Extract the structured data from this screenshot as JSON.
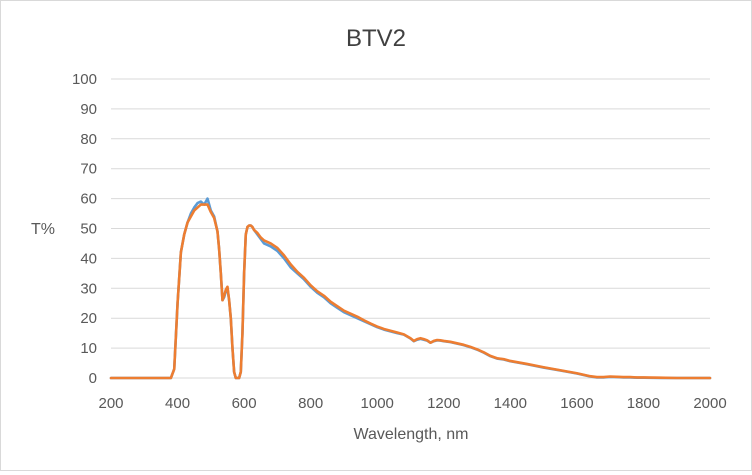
{
  "chart_data": {
    "type": "line",
    "title": "BTV2",
    "xlabel": "Wavelength, nm",
    "ylabel": "T%",
    "xlim": [
      200,
      2000
    ],
    "ylim": [
      0,
      100
    ],
    "x_ticks": [
      200,
      400,
      600,
      800,
      1000,
      1200,
      1400,
      1600,
      1800,
      2000
    ],
    "y_ticks": [
      0,
      10,
      20,
      30,
      40,
      50,
      60,
      70,
      80,
      90,
      100
    ],
    "grid": true,
    "legend": "none",
    "colors": [
      "#5b9bd5",
      "#ed7d31"
    ],
    "series": [
      {
        "color": "#5b9bd5",
        "x": [
          200,
          380,
          390,
          400,
          410,
          420,
          430,
          440,
          450,
          460,
          470,
          480,
          490,
          500,
          510,
          520,
          525,
          530,
          535,
          540,
          545,
          550,
          555,
          560,
          565,
          570,
          575,
          580,
          585,
          590,
          595,
          600,
          605,
          610,
          615,
          620,
          625,
          630,
          640,
          650,
          660,
          680,
          700,
          720,
          740,
          760,
          780,
          800,
          820,
          840,
          860,
          880,
          900,
          920,
          940,
          960,
          980,
          1000,
          1020,
          1040,
          1060,
          1080,
          1100,
          1110,
          1120,
          1130,
          1140,
          1150,
          1160,
          1170,
          1180,
          1190,
          1200,
          1220,
          1240,
          1260,
          1280,
          1300,
          1320,
          1340,
          1360,
          1380,
          1400,
          1450,
          1500,
          1550,
          1600,
          1640,
          1660,
          1680,
          1700,
          1720,
          1740,
          1760,
          1780,
          1800,
          1850,
          1900,
          1950,
          2000
        ],
        "values": [
          0,
          0,
          3,
          25,
          42,
          48,
          52,
          55,
          57,
          58.5,
          59,
          58,
          60,
          56,
          54,
          49,
          43,
          35,
          26,
          27,
          29,
          30,
          26,
          20,
          10,
          2,
          0,
          0,
          0,
          2,
          15,
          35,
          48,
          50.5,
          51,
          51,
          50.5,
          49.5,
          48,
          46.5,
          45,
          44,
          42.5,
          40,
          37,
          35,
          33,
          30.5,
          28.5,
          27,
          25,
          23.5,
          22,
          21,
          20,
          19,
          18,
          17,
          16.2,
          15.6,
          15,
          14.5,
          13.2,
          12.3,
          12.8,
          13.1,
          12.8,
          12.5,
          11.8,
          12.3,
          12.6,
          12.5,
          12.3,
          12,
          11.5,
          11,
          10.3,
          9.5,
          8.5,
          7.3,
          6.5,
          6.2,
          5.6,
          4.6,
          3.5,
          2.5,
          1.5,
          0.5,
          0.2,
          0.2,
          0.4,
          0.3,
          0.2,
          0.2,
          0.1,
          0.1,
          0,
          0,
          0,
          0
        ]
      },
      {
        "color": "#ed7d31",
        "x": [
          200,
          380,
          390,
          400,
          410,
          420,
          430,
          440,
          450,
          460,
          470,
          480,
          490,
          500,
          510,
          520,
          525,
          530,
          535,
          540,
          545,
          550,
          555,
          560,
          565,
          570,
          575,
          580,
          585,
          590,
          595,
          600,
          605,
          610,
          615,
          620,
          625,
          630,
          640,
          650,
          660,
          680,
          700,
          720,
          740,
          760,
          780,
          800,
          820,
          840,
          860,
          880,
          900,
          920,
          940,
          960,
          980,
          1000,
          1020,
          1040,
          1060,
          1080,
          1100,
          1110,
          1120,
          1130,
          1140,
          1150,
          1160,
          1170,
          1180,
          1190,
          1200,
          1220,
          1240,
          1260,
          1280,
          1300,
          1320,
          1340,
          1360,
          1380,
          1400,
          1450,
          1500,
          1550,
          1600,
          1640,
          1660,
          1680,
          1700,
          1720,
          1740,
          1760,
          1780,
          1800,
          1850,
          1900,
          1950,
          2000
        ],
        "values": [
          0,
          0,
          3,
          25,
          42,
          48,
          52,
          54,
          56,
          57,
          58,
          58,
          58,
          55.5,
          53.5,
          49,
          43,
          35,
          26,
          27.5,
          29.5,
          30.5,
          26,
          20,
          10,
          2,
          0,
          0,
          0,
          2,
          15,
          35,
          48,
          50.5,
          51,
          51,
          50.5,
          49.5,
          48.5,
          47,
          46,
          45,
          43.5,
          41,
          38,
          35.5,
          33.5,
          31,
          29,
          27.5,
          25.5,
          24,
          22.5,
          21.5,
          20.5,
          19.3,
          18.2,
          17.2,
          16.4,
          15.8,
          15.2,
          14.6,
          13.3,
          12.4,
          13,
          13.3,
          13,
          12.6,
          11.8,
          12.4,
          12.7,
          12.6,
          12.4,
          12.1,
          11.6,
          11.1,
          10.4,
          9.6,
          8.6,
          7.4,
          6.6,
          6.3,
          5.7,
          4.7,
          3.6,
          2.6,
          1.6,
          0.6,
          0.3,
          0.3,
          0.5,
          0.4,
          0.3,
          0.3,
          0.2,
          0.2,
          0.1,
          0,
          0,
          0
        ]
      }
    ]
  }
}
